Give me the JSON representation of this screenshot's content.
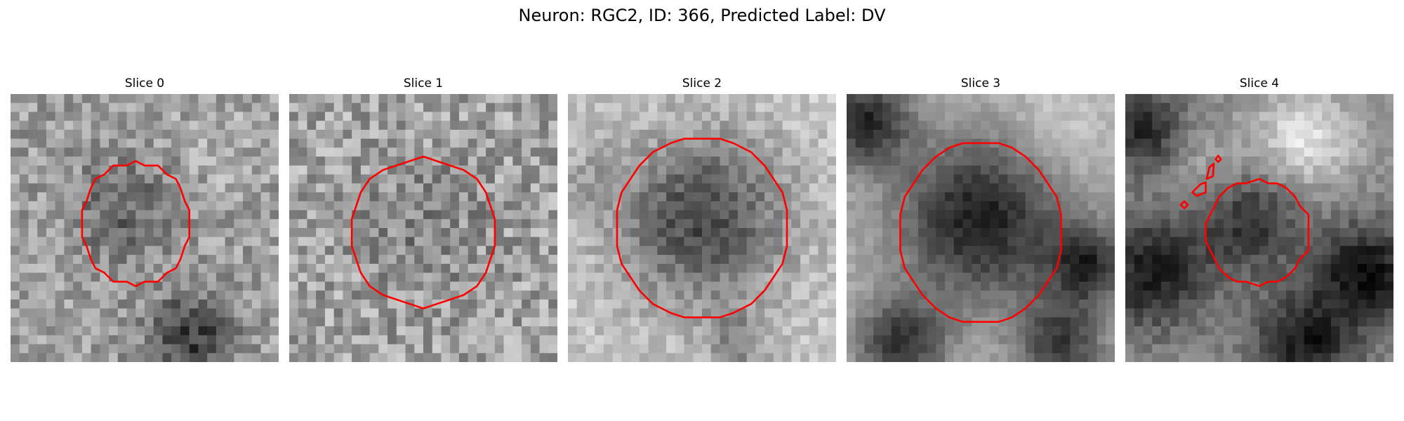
{
  "title": "Neuron: RGC2, ID: 366, Predicted Label: DV",
  "contour_color": "#ff0000",
  "panels": [
    {
      "title": "Slice 0"
    },
    {
      "title": "Slice 1"
    },
    {
      "title": "Slice 2"
    },
    {
      "title": "Slice 3"
    },
    {
      "title": "Slice 4"
    }
  ]
}
